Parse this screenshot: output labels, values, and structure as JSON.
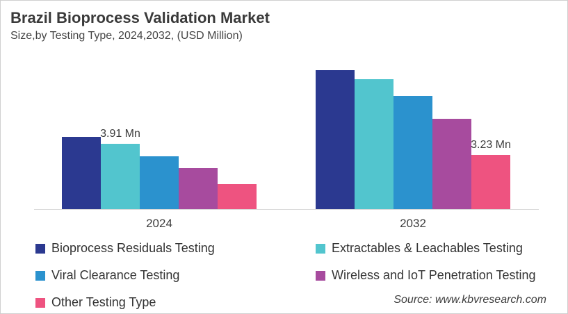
{
  "header": {
    "title": "Brazil Bioprocess Validation Market",
    "subtitle": "Size,by Testing Type, 2024,2032, (USD Million)"
  },
  "chart_data": {
    "type": "bar",
    "title": "Brazil Bioprocess Validation Market",
    "subtitle": "Size,by Testing Type, 2024,2032, (USD Million)",
    "categories": [
      "2024",
      "2032"
    ],
    "series": [
      {
        "name": "Bioprocess Residuals Testing",
        "color": "#2B3990",
        "values": [
          4.3,
          8.3
        ]
      },
      {
        "name": "Extractables & Leachables Testing",
        "color": "#52C5CE",
        "values": [
          3.91,
          7.75
        ]
      },
      {
        "name": "Viral Clearance Testing",
        "color": "#2B92CE",
        "values": [
          3.15,
          6.75
        ]
      },
      {
        "name": "Wireless and IoT Penetration Testing",
        "color": "#A74B9E",
        "values": [
          2.45,
          5.4
        ]
      },
      {
        "name": "Other Testing Type",
        "color": "#EE5380",
        "values": [
          1.5,
          3.23
        ]
      }
    ],
    "data_labels": [
      {
        "category_index": 0,
        "series_index": 1,
        "text": "3.91 Mn"
      },
      {
        "category_index": 1,
        "series_index": 4,
        "text": "3.23 Mn"
      }
    ],
    "xlabel": "",
    "ylabel": "",
    "ylim": [
      0,
      8.7
    ],
    "grid": false,
    "legend_position": "bottom",
    "axis_line_color": "#D9D9D9"
  },
  "source": "Source: www.kbvresearch.com"
}
